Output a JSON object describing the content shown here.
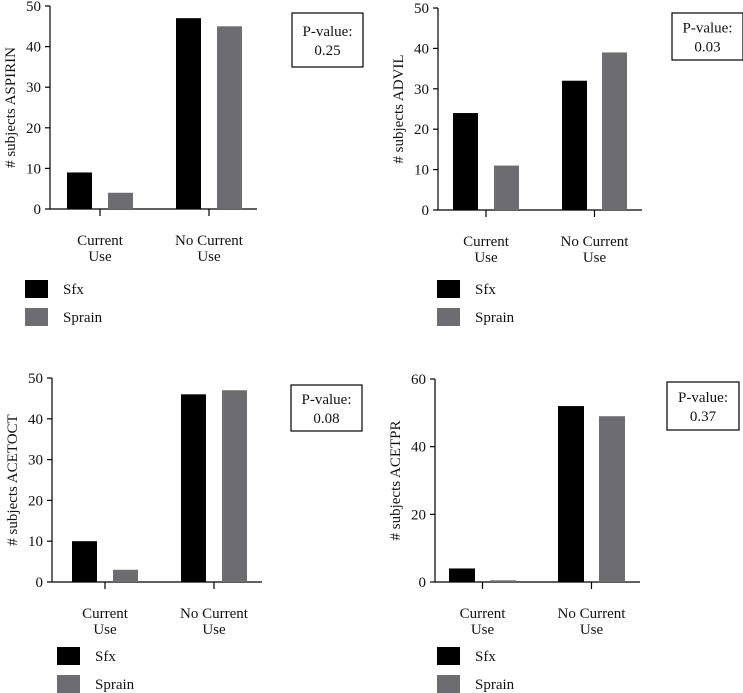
{
  "chart_data": [
    {
      "type": "bar",
      "ylabel": "# subjects ASPIRIN",
      "categories": [
        [
          "Current",
          "Use"
        ],
        [
          "No Current",
          "Use"
        ]
      ],
      "ylim": [
        0,
        50
      ],
      "yticks": [
        0,
        10,
        20,
        30,
        40,
        50
      ],
      "series": [
        {
          "name": "Sfx",
          "values": [
            9,
            47
          ]
        },
        {
          "name": "Sprain",
          "values": [
            4,
            45
          ]
        }
      ],
      "annotation": {
        "label": "P-value:",
        "value": "0.25"
      },
      "legend": "bottom-left"
    },
    {
      "type": "bar",
      "ylabel": "# subjects ADVIL",
      "categories": [
        [
          "Current",
          "Use"
        ],
        [
          "No Current",
          "Use"
        ]
      ],
      "ylim": [
        0,
        50
      ],
      "yticks": [
        0,
        10,
        20,
        30,
        40,
        50
      ],
      "series": [
        {
          "name": "Sfx",
          "values": [
            24,
            32
          ]
        },
        {
          "name": "Sprain",
          "values": [
            11,
            39
          ]
        }
      ],
      "annotation": {
        "label": "P-value:",
        "value": "0.03"
      },
      "legend": "bottom-left"
    },
    {
      "type": "bar",
      "ylabel": "# subjects ACETOCT",
      "categories": [
        [
          "Current",
          "Use"
        ],
        [
          "No Current",
          "Use"
        ]
      ],
      "ylim": [
        0,
        50
      ],
      "yticks": [
        0,
        10,
        20,
        30,
        40,
        50
      ],
      "series": [
        {
          "name": "Sfx",
          "values": [
            10,
            46
          ]
        },
        {
          "name": "Sprain",
          "values": [
            3,
            47
          ]
        }
      ],
      "annotation": {
        "label": "P-value:",
        "value": "0.08"
      },
      "legend": "bottom-left"
    },
    {
      "type": "bar",
      "ylabel": "# subjects ACETPR",
      "categories": [
        [
          "Current",
          "Use"
        ],
        [
          "No Current",
          "Use"
        ]
      ],
      "ylim": [
        0,
        60
      ],
      "yticks": [
        0,
        20,
        40,
        60
      ],
      "series": [
        {
          "name": "Sfx",
          "values": [
            4,
            52
          ]
        },
        {
          "name": "Sprain",
          "values": [
            0.5,
            49
          ]
        }
      ],
      "annotation": {
        "label": "P-value:",
        "value": "0.37"
      },
      "legend": "bottom-left"
    }
  ],
  "colors": {
    "Sfx": "#000000",
    "Sprain": "#6d6d71"
  }
}
